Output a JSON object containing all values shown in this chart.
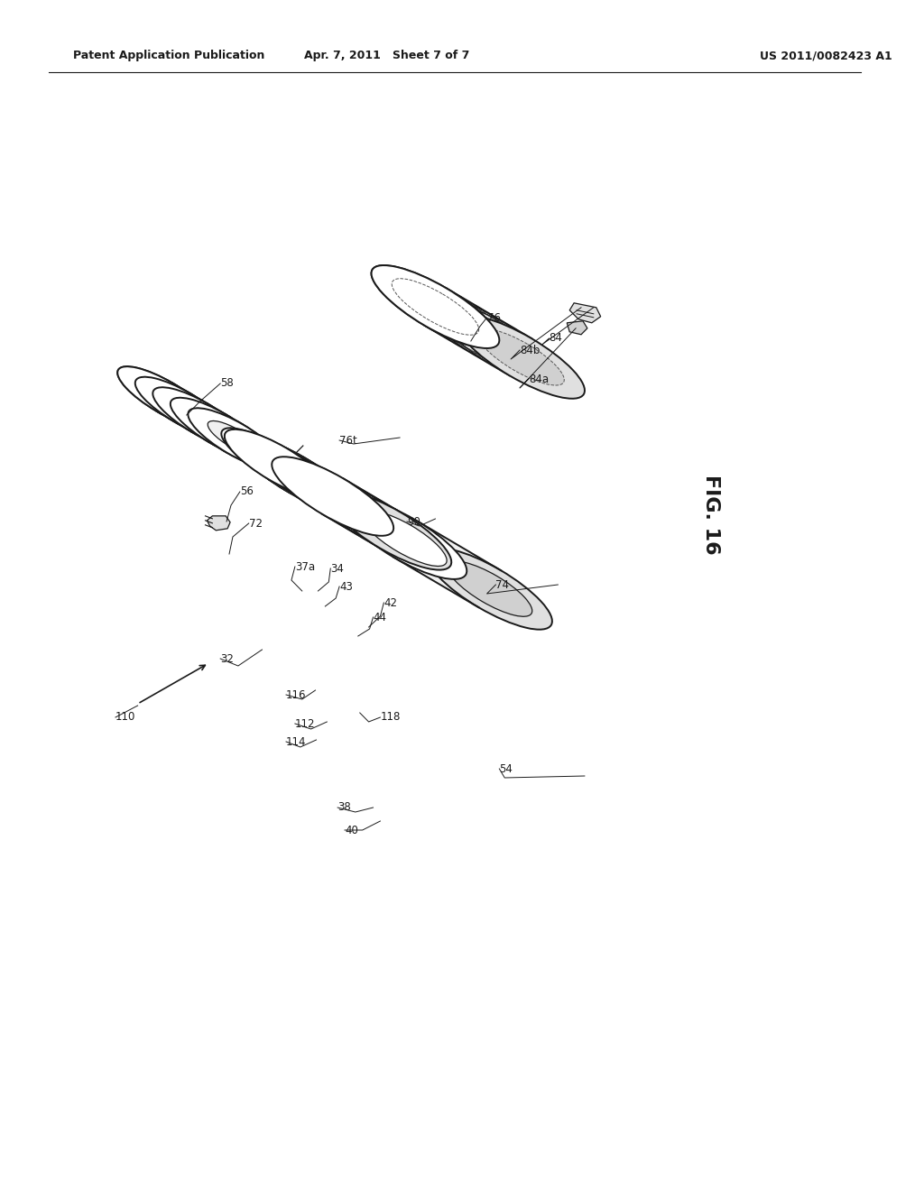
{
  "background_color": "#ffffff",
  "header_left": "Patent Application Publication",
  "header_center": "Apr. 7, 2011   Sheet 7 of 7",
  "header_right": "US 2011/0082423 A1",
  "figure_label": "FIG. 16",
  "line_color": "#1a1a1a",
  "dash_color": "#555555"
}
